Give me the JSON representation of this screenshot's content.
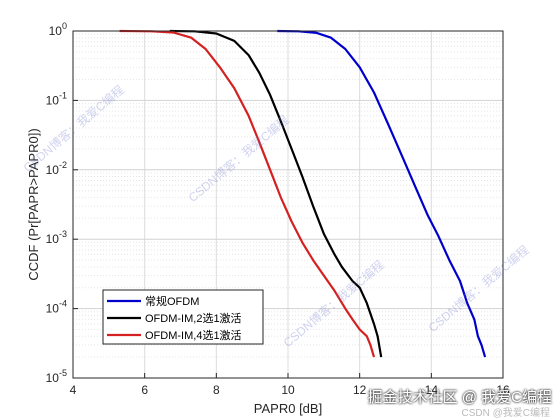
{
  "chart_data": {
    "type": "line",
    "xlabel": "PAPR0 [dB]",
    "ylabel": "CCDF (Pr[PAPR>PAPR0])",
    "xlim": [
      4,
      16
    ],
    "ylim": [
      1e-05,
      1
    ],
    "y_scale": "log",
    "grid": true,
    "legend_position": "bottom-left",
    "x_ticks": [
      "4",
      "6",
      "8",
      "10",
      "12",
      "14",
      "16"
    ],
    "y_ticks": [
      {
        "base": "10",
        "exp": "0"
      },
      {
        "base": "10",
        "exp": "-1"
      },
      {
        "base": "10",
        "exp": "-2"
      },
      {
        "base": "10",
        "exp": "-3"
      },
      {
        "base": "10",
        "exp": "-4"
      },
      {
        "base": "10",
        "exp": "-5"
      }
    ],
    "series": [
      {
        "name": "常规OFDM",
        "color": "#0000cc",
        "x": [
          9.7,
          10.3,
          10.8,
          11.2,
          11.6,
          12.0,
          12.4,
          12.8,
          13.2,
          13.6,
          13.9,
          14.2,
          14.5,
          14.8,
          15.0,
          15.2,
          15.3,
          15.4,
          15.5
        ],
        "y": [
          1.0,
          0.99,
          0.94,
          0.8,
          0.55,
          0.3,
          0.13,
          0.045,
          0.015,
          0.005,
          0.0022,
          0.0011,
          0.0005,
          0.00025,
          0.00012,
          7e-05,
          4e-05,
          3e-05,
          2e-05
        ]
      },
      {
        "name": "OFDM-IM,2选1激活",
        "color": "#000000",
        "x": [
          6.7,
          7.4,
          8.0,
          8.5,
          8.9,
          9.2,
          9.5,
          9.8,
          10.1,
          10.4,
          10.7,
          11.0,
          11.3,
          11.5,
          11.8,
          12.0,
          12.2,
          12.4,
          12.5,
          12.6
        ],
        "y": [
          1.0,
          0.99,
          0.92,
          0.72,
          0.45,
          0.25,
          0.12,
          0.05,
          0.02,
          0.008,
          0.003,
          0.0012,
          0.0006,
          0.0004,
          0.00025,
          0.0002,
          0.00012,
          6e-05,
          4e-05,
          2e-05
        ]
      },
      {
        "name": "OFDM-IM,4选1激活",
        "color": "#d42020",
        "x": [
          5.3,
          6.2,
          6.8,
          7.3,
          7.7,
          8.1,
          8.5,
          8.9,
          9.2,
          9.5,
          9.8,
          10.1,
          10.4,
          10.7,
          11.0,
          11.3,
          11.6,
          11.8,
          12.0,
          12.2,
          12.3,
          12.4
        ],
        "y": [
          1.0,
          0.99,
          0.95,
          0.8,
          0.55,
          0.3,
          0.15,
          0.06,
          0.025,
          0.01,
          0.004,
          0.0018,
          0.0009,
          0.0005,
          0.0003,
          0.00018,
          0.0001,
          7e-05,
          5e-05,
          4e-05,
          3e-05,
          2e-05
        ]
      }
    ]
  },
  "watermark": "CSDN博客：我爱C编程",
  "credit": "掘金技术社区 @ 我爱C编程",
  "credit_sub": "CSDN @我爱C编程"
}
